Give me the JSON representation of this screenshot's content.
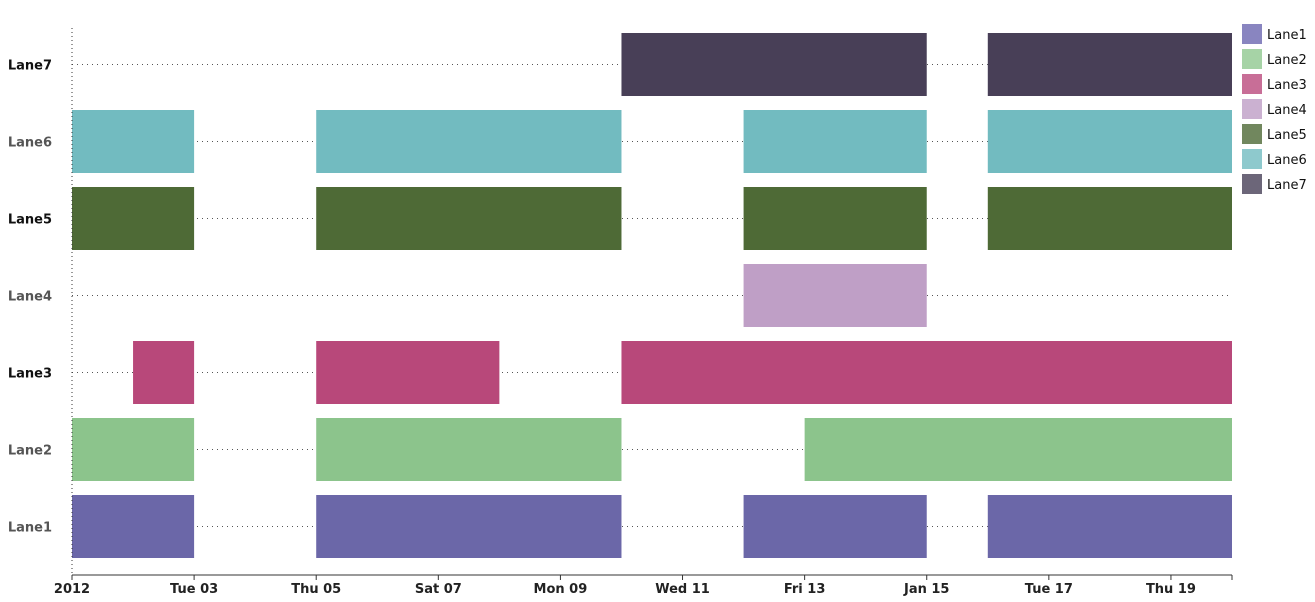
{
  "chart_data": {
    "type": "bar",
    "orientation": "horizontal-timeline",
    "lanes": [
      "Lane1",
      "Lane2",
      "Lane3",
      "Lane4",
      "Lane5",
      "Lane6",
      "Lane7"
    ],
    "lane_label_colors": {
      "Lane1": "#555555",
      "Lane2": "#555555",
      "Lane3": "#111111",
      "Lane4": "#555555",
      "Lane5": "#111111",
      "Lane6": "#555555",
      "Lane7": "#111111"
    },
    "x_range": [
      "2012-01-01",
      "2012-01-20"
    ],
    "ticks": [
      {
        "date": "2012-01-01",
        "label": "2012"
      },
      {
        "date": "2012-01-03",
        "label": "Tue 03"
      },
      {
        "date": "2012-01-05",
        "label": "Thu 05"
      },
      {
        "date": "2012-01-07",
        "label": "Sat 07"
      },
      {
        "date": "2012-01-09",
        "label": "Mon 09"
      },
      {
        "date": "2012-01-11",
        "label": "Wed 11"
      },
      {
        "date": "2012-01-13",
        "label": "Fri 13"
      },
      {
        "date": "2012-01-15",
        "label": "Jan 15"
      },
      {
        "date": "2012-01-17",
        "label": "Tue 17"
      },
      {
        "date": "2012-01-19",
        "label": "Thu 19"
      }
    ],
    "series": [
      {
        "name": "Lane1",
        "color": "#6b67a8",
        "legend_color": "#8985c0",
        "intervals": [
          [
            "2012-01-01",
            "2012-01-03"
          ],
          [
            "2012-01-05",
            "2012-01-10"
          ],
          [
            "2012-01-12",
            "2012-01-15"
          ],
          [
            "2012-01-16",
            "2012-01-20"
          ]
        ]
      },
      {
        "name": "Lane2",
        "color": "#8cc48c",
        "legend_color": "#a6d3a6",
        "intervals": [
          [
            "2012-01-01",
            "2012-01-03"
          ],
          [
            "2012-01-05",
            "2012-01-10"
          ],
          [
            "2012-01-13",
            "2012-01-20"
          ]
        ]
      },
      {
        "name": "Lane3",
        "color": "#b8487a",
        "legend_color": "#c86e97",
        "intervals": [
          [
            "2012-01-02",
            "2012-01-03"
          ],
          [
            "2012-01-05",
            "2012-01-08"
          ],
          [
            "2012-01-10",
            "2012-01-20"
          ]
        ]
      },
      {
        "name": "Lane4",
        "color": "#bf9fc6",
        "legend_color": "#cbb1d1",
        "intervals": [
          [
            "2012-01-12",
            "2012-01-15"
          ]
        ]
      },
      {
        "name": "Lane5",
        "color": "#4e6a36",
        "legend_color": "#71875e",
        "intervals": [
          [
            "2012-01-01",
            "2012-01-03"
          ],
          [
            "2012-01-05",
            "2012-01-10"
          ],
          [
            "2012-01-12",
            "2012-01-15"
          ],
          [
            "2012-01-16",
            "2012-01-20"
          ]
        ]
      },
      {
        "name": "Lane6",
        "color": "#72bbc0",
        "legend_color": "#8ec9cd",
        "intervals": [
          [
            "2012-01-01",
            "2012-01-03"
          ],
          [
            "2012-01-05",
            "2012-01-10"
          ],
          [
            "2012-01-12",
            "2012-01-15"
          ],
          [
            "2012-01-16",
            "2012-01-20"
          ]
        ]
      },
      {
        "name": "Lane7",
        "color": "#483f57",
        "legend_color": "#6c6679",
        "intervals": [
          [
            "2012-01-10",
            "2012-01-15"
          ],
          [
            "2012-01-16",
            "2012-01-20"
          ]
        ]
      }
    ],
    "legend_position": "top-right",
    "grid": "dotted lane guide lines",
    "title": "",
    "xlabel": "",
    "ylabel": ""
  }
}
